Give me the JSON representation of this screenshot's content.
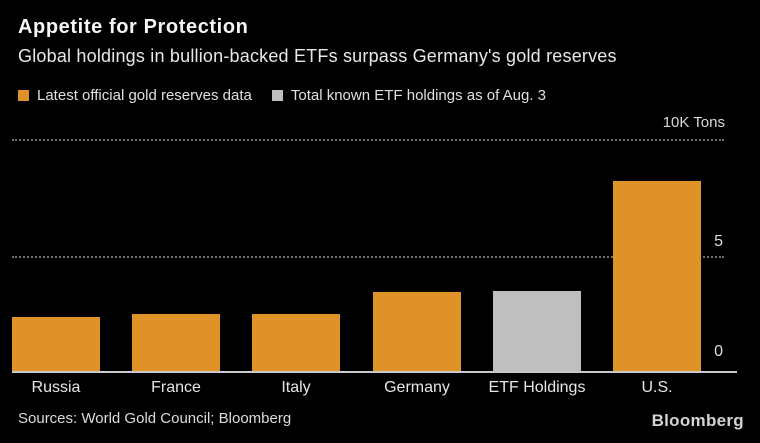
{
  "header": {
    "title": "Appetite for Protection",
    "subtitle": "Global holdings in bullion-backed ETFs surpass Germany's gold reserves"
  },
  "legend": {
    "items": [
      {
        "label": "Latest official gold reserves data",
        "color": "#DE9227",
        "swatch": "orange-square-icon"
      },
      {
        "label": "Total known ETF holdings as of Aug. 3",
        "color": "#BFBFBF",
        "swatch": "gray-square-icon"
      }
    ]
  },
  "axis": {
    "unit_label": "10K Tons",
    "tick_labels": [
      "5",
      "0"
    ]
  },
  "palette": {
    "orange": "#DE9227",
    "gray": "#BFBFBF",
    "background": "#000000",
    "gridline": "#6E6E6E",
    "axis_line": "#C9C9C9",
    "text": "#E8E8E8"
  },
  "chart_data": {
    "type": "bar",
    "title": "Appetite for Protection",
    "subtitle": "Global holdings in bullion-backed ETFs surpass Germany's gold reserves",
    "categories": [
      "Russia",
      "France",
      "Italy",
      "Germany",
      "ETF Holdings",
      "U.S."
    ],
    "values": [
      2.3,
      2.44,
      2.42,
      3.36,
      3.41,
      8.13
    ],
    "bar_colors": [
      "orange",
      "orange",
      "orange",
      "orange",
      "gray",
      "orange"
    ],
    "xlabel": "",
    "ylabel": "10K Tons",
    "ylim": [
      0,
      10
    ],
    "yticks": [
      0,
      5,
      10
    ],
    "grid": "horizontal dotted",
    "legend_position": "top-left",
    "legend": [
      "Latest official gold reserves data",
      "Total known ETF holdings as of Aug. 3"
    ]
  },
  "footer": {
    "sources": "Sources: World Gold Council; Bloomberg",
    "brand": "Bloomberg"
  }
}
